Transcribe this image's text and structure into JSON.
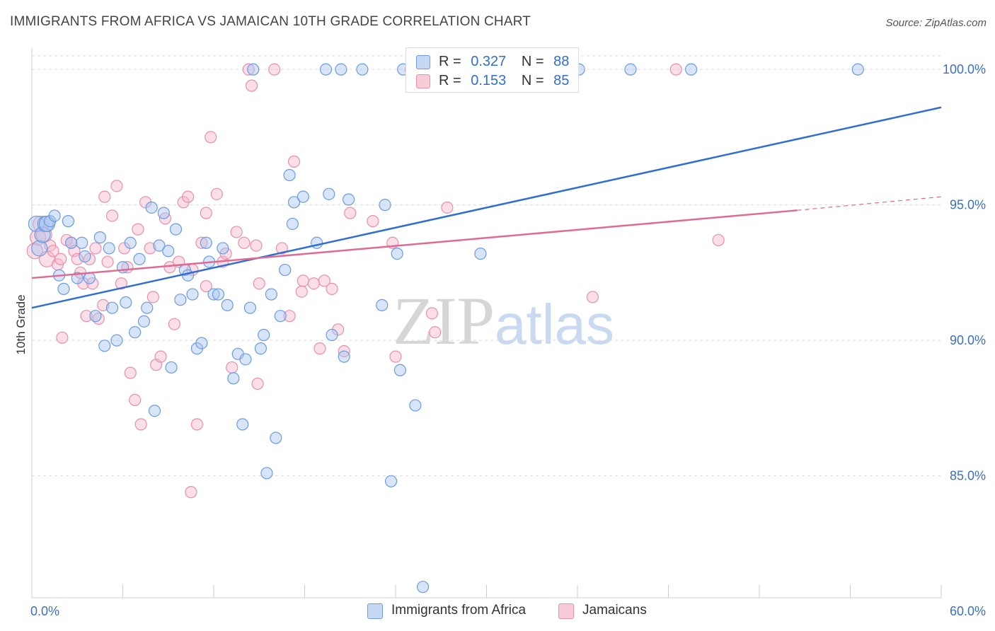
{
  "header": {
    "title": "IMMIGRANTS FROM AFRICA VS JAMAICAN 10TH GRADE CORRELATION CHART",
    "source": "Source: ZipAtlas.com"
  },
  "legend_top": {
    "rows": [
      {
        "r_label": "R =",
        "r_value": "0.327",
        "n_label": "N =",
        "n_value": "88"
      },
      {
        "r_label": "R =",
        "r_value": "0.153",
        "n_label": "N =",
        "n_value": "85"
      }
    ]
  },
  "legend_bottom": {
    "items": [
      "Immigrants from Africa",
      "Jamaicans"
    ]
  },
  "watermark": {
    "zip": "ZIP",
    "atlas": "atlas"
  },
  "colors": {
    "blue_fill": "#a9c6ef",
    "blue_stroke": "#6b9be0",
    "blue_line": "#2f6fd1",
    "pink_fill": "#f5b8cb",
    "pink_stroke": "#e98fac",
    "pink_line": "#e06a94",
    "axis_text": "#3b6fc4"
  },
  "chart_data": {
    "type": "scatter",
    "title": "IMMIGRANTS FROM AFRICA VS JAMAICAN 10TH GRADE CORRELATION CHART",
    "xlabel": "",
    "ylabel": "10th Grade",
    "xlim": [
      0,
      60
    ],
    "ylim": [
      80.5,
      100.5
    ],
    "x_ticks": [
      0,
      60
    ],
    "x_tick_labels": [
      "0.0%",
      "60.0%"
    ],
    "y_ticks": [
      85,
      90,
      95,
      100
    ],
    "y_tick_labels": [
      "85.0%",
      "90.0%",
      "95.0%",
      "100.0%"
    ],
    "grid": true,
    "legend_position": "top-center",
    "series": [
      {
        "name": "Immigrants from Africa",
        "R": 0.327,
        "N": 88,
        "trend": {
          "x0": 0,
          "y0": 91.2,
          "x1": 60,
          "y1": 98.6
        },
        "points": [
          [
            0.3,
            94.3
          ],
          [
            0.5,
            93.4
          ],
          [
            0.7,
            93.9
          ],
          [
            0.9,
            94.3
          ],
          [
            1.0,
            94.3
          ],
          [
            1.2,
            94.4
          ],
          [
            1.5,
            94.6
          ],
          [
            1.8,
            92.4
          ],
          [
            2.1,
            91.9
          ],
          [
            2.4,
            94.4
          ],
          [
            2.6,
            93.6
          ],
          [
            3.0,
            92.3
          ],
          [
            3.3,
            93.6
          ],
          [
            3.5,
            93.1
          ],
          [
            3.8,
            92.3
          ],
          [
            4.2,
            90.9
          ],
          [
            4.5,
            93.8
          ],
          [
            4.8,
            89.8
          ],
          [
            5.1,
            93.4
          ],
          [
            5.3,
            91.2
          ],
          [
            5.6,
            90.0
          ],
          [
            6.0,
            92.7
          ],
          [
            6.2,
            91.4
          ],
          [
            6.5,
            93.6
          ],
          [
            6.8,
            90.3
          ],
          [
            7.1,
            93.0
          ],
          [
            7.4,
            90.7
          ],
          [
            7.6,
            91.2
          ],
          [
            7.9,
            94.9
          ],
          [
            8.1,
            87.4
          ],
          [
            8.4,
            93.5
          ],
          [
            8.7,
            94.7
          ],
          [
            9.0,
            93.3
          ],
          [
            9.2,
            89.0
          ],
          [
            9.5,
            94.1
          ],
          [
            9.8,
            91.5
          ],
          [
            10.1,
            92.6
          ],
          [
            10.3,
            92.4
          ],
          [
            10.6,
            91.7
          ],
          [
            10.9,
            89.7
          ],
          [
            11.2,
            89.9
          ],
          [
            11.5,
            93.6
          ],
          [
            11.7,
            92.9
          ],
          [
            12.0,
            91.7
          ],
          [
            12.3,
            91.7
          ],
          [
            12.6,
            93.4
          ],
          [
            12.9,
            91.3
          ],
          [
            13.3,
            88.6
          ],
          [
            13.6,
            89.5
          ],
          [
            13.9,
            86.9
          ],
          [
            14.1,
            89.3
          ],
          [
            14.4,
            91.2
          ],
          [
            14.6,
            100.0
          ],
          [
            15.1,
            89.7
          ],
          [
            15.3,
            90.2
          ],
          [
            15.5,
            85.1
          ],
          [
            15.8,
            91.7
          ],
          [
            16.1,
            86.4
          ],
          [
            16.4,
            90.9
          ],
          [
            16.7,
            92.6
          ],
          [
            17.0,
            96.1
          ],
          [
            17.2,
            94.3
          ],
          [
            17.3,
            95.1
          ],
          [
            17.9,
            95.3
          ],
          [
            18.8,
            93.6
          ],
          [
            19.4,
            100.0
          ],
          [
            19.6,
            95.4
          ],
          [
            19.8,
            90.2
          ],
          [
            20.4,
            100.0
          ],
          [
            20.6,
            89.4
          ],
          [
            20.9,
            95.2
          ],
          [
            21.8,
            100.0
          ],
          [
            23.1,
            91.3
          ],
          [
            23.3,
            95.0
          ],
          [
            23.7,
            84.8
          ],
          [
            24.1,
            93.2
          ],
          [
            24.3,
            88.9
          ],
          [
            24.5,
            100.0
          ],
          [
            25.3,
            87.6
          ],
          [
            25.8,
            80.9
          ],
          [
            29.6,
            93.2
          ],
          [
            32.8,
            100.0
          ],
          [
            36.1,
            100.0
          ],
          [
            39.5,
            100.0
          ],
          [
            43.5,
            100.0
          ],
          [
            54.5,
            100.0
          ],
          [
            30.0,
            100.0
          ],
          [
            31.5,
            100.0
          ]
        ]
      },
      {
        "name": "Jamaicans",
        "R": 0.153,
        "N": 85,
        "trend": {
          "x0": 0,
          "y0": 92.3,
          "x1": 50.5,
          "y1": 94.8,
          "dash_x1": 60,
          "dash_y1": 95.3
        },
        "points": [
          [
            0.2,
            93.3
          ],
          [
            0.4,
            93.8
          ],
          [
            0.6,
            94.3
          ],
          [
            0.8,
            93.9
          ],
          [
            1.0,
            93.0
          ],
          [
            1.2,
            93.5
          ],
          [
            1.4,
            93.3
          ],
          [
            1.7,
            92.8
          ],
          [
            1.9,
            93.0
          ],
          [
            2.0,
            90.1
          ],
          [
            2.3,
            93.7
          ],
          [
            2.6,
            93.6
          ],
          [
            2.8,
            93.3
          ],
          [
            3.0,
            93.0
          ],
          [
            3.2,
            92.5
          ],
          [
            3.4,
            92.1
          ],
          [
            3.6,
            90.9
          ],
          [
            3.8,
            93.0
          ],
          [
            4.0,
            92.1
          ],
          [
            4.2,
            93.4
          ],
          [
            4.4,
            90.8
          ],
          [
            4.7,
            91.3
          ],
          [
            4.8,
            95.3
          ],
          [
            5.0,
            92.9
          ],
          [
            5.3,
            94.6
          ],
          [
            5.6,
            95.7
          ],
          [
            5.9,
            92.1
          ],
          [
            6.1,
            93.4
          ],
          [
            6.3,
            92.7
          ],
          [
            6.5,
            88.8
          ],
          [
            6.8,
            87.8
          ],
          [
            7.0,
            94.1
          ],
          [
            7.2,
            86.9
          ],
          [
            7.5,
            95.1
          ],
          [
            7.8,
            93.4
          ],
          [
            8.0,
            91.6
          ],
          [
            8.2,
            89.1
          ],
          [
            8.5,
            89.4
          ],
          [
            8.8,
            94.5
          ],
          [
            9.1,
            92.7
          ],
          [
            9.4,
            90.6
          ],
          [
            9.7,
            92.9
          ],
          [
            10.0,
            95.1
          ],
          [
            10.3,
            95.3
          ],
          [
            10.6,
            92.6
          ],
          [
            10.9,
            86.9
          ],
          [
            11.2,
            93.6
          ],
          [
            11.5,
            94.7
          ],
          [
            11.5,
            92.0
          ],
          [
            11.8,
            97.5
          ],
          [
            12.2,
            95.4
          ],
          [
            12.6,
            92.9
          ],
          [
            12.8,
            93.2
          ],
          [
            13.2,
            89.0
          ],
          [
            13.5,
            94.0
          ],
          [
            14.0,
            93.6
          ],
          [
            14.3,
            100.0
          ],
          [
            14.5,
            99.4
          ],
          [
            14.8,
            93.5
          ],
          [
            14.9,
            88.4
          ],
          [
            15.0,
            92.1
          ],
          [
            16.0,
            100.0
          ],
          [
            16.5,
            93.4
          ],
          [
            17.0,
            90.9
          ],
          [
            17.3,
            96.6
          ],
          [
            17.8,
            91.8
          ],
          [
            17.9,
            92.2
          ],
          [
            18.6,
            92.1
          ],
          [
            19.0,
            89.7
          ],
          [
            19.3,
            92.2
          ],
          [
            19.8,
            91.9
          ],
          [
            20.2,
            90.4
          ],
          [
            20.6,
            89.6
          ],
          [
            21.0,
            94.7
          ],
          [
            22.5,
            94.4
          ],
          [
            23.8,
            93.6
          ],
          [
            24.0,
            89.4
          ],
          [
            25.0,
            100.0
          ],
          [
            26.4,
            91.0
          ],
          [
            26.6,
            90.3
          ],
          [
            27.4,
            94.9
          ],
          [
            37.0,
            91.6
          ],
          [
            42.5,
            100.0
          ],
          [
            45.3,
            93.7
          ],
          [
            10.5,
            84.4
          ]
        ]
      }
    ]
  }
}
